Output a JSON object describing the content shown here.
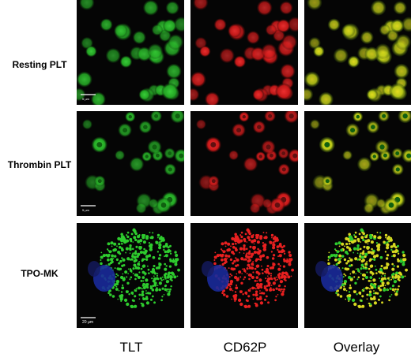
{
  "rows": [
    {
      "label": "Resting PLT",
      "scale_bar": "5 µm"
    },
    {
      "label": "Thrombin PLT",
      "scale_bar": "5 µm"
    },
    {
      "label": "TPO-MK",
      "scale_bar": "20 µm"
    }
  ],
  "columns": [
    "TLT",
    "CD62P",
    "Overlay"
  ]
}
